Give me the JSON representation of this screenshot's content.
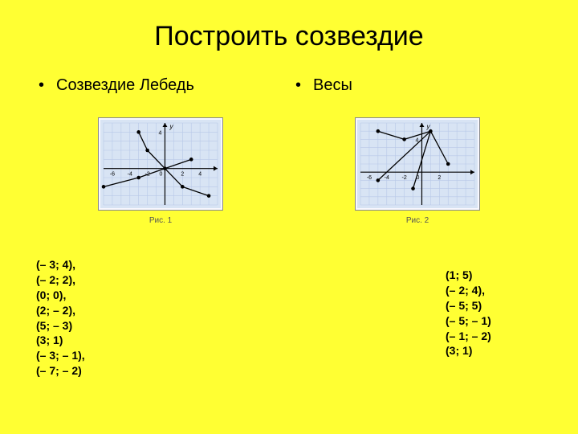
{
  "title": "Построить созвездие",
  "left": {
    "subtitle": "Созвездие Лебедь",
    "caption": "Рис. 1",
    "coords": [
      "(– 3; 4),",
      "(– 2; 2),",
      "(0; 0),",
      "(2; – 2),",
      "(5; – 3)",
      "(3; 1)",
      "(– 3; – 1),",
      "(– 7; – 2)"
    ],
    "chart": {
      "w": 150,
      "h": 110,
      "xmin": -7,
      "xmax": 6,
      "ymin": -4,
      "ymax": 5,
      "xticks_labeled": [
        -6,
        -4,
        -2,
        2,
        4
      ],
      "yticks_labeled": [
        4
      ],
      "grid_color": "#b8c8e8",
      "axis_color": "#000",
      "bg": "#d8e4f4",
      "point_color": "#000",
      "point_r": 2.3,
      "line_w": 1.3,
      "segments": [
        [
          [
            -3,
            4
          ],
          [
            -2,
            2
          ]
        ],
        [
          [
            -2,
            2
          ],
          [
            0,
            0
          ]
        ],
        [
          [
            0,
            0
          ],
          [
            2,
            -2
          ]
        ],
        [
          [
            2,
            -2
          ],
          [
            5,
            -3
          ]
        ],
        [
          [
            0,
            0
          ],
          [
            3,
            1
          ]
        ],
        [
          [
            0,
            0
          ],
          [
            -3,
            -1
          ]
        ],
        [
          [
            -3,
            -1
          ],
          [
            -7,
            -2
          ]
        ]
      ],
      "points": [
        [
          -3,
          4
        ],
        [
          -2,
          2
        ],
        [
          0,
          0
        ],
        [
          2,
          -2
        ],
        [
          5,
          -3
        ],
        [
          3,
          1
        ],
        [
          -3,
          -1
        ],
        [
          -7,
          -2
        ]
      ],
      "ylabel": "y"
    }
  },
  "right": {
    "subtitle": "Весы",
    "caption": "Рис. 2",
    "coords": [
      "(1; 5)",
      "(– 2; 4),",
      "(– 5; 5)",
      "(– 5; – 1)",
      "(– 1; – 2)",
      "(3; 1)"
    ],
    "chart": {
      "w": 150,
      "h": 110,
      "xmin": -7,
      "xmax": 6,
      "ymin": -4,
      "ymax": 6,
      "xticks_labeled": [
        -6,
        -4,
        -2,
        2
      ],
      "yticks_labeled": [
        4
      ],
      "grid_color": "#b8c8e8",
      "axis_color": "#000",
      "bg": "#d8e4f4",
      "point_color": "#000",
      "point_r": 2.3,
      "line_w": 1.3,
      "segments": [
        [
          [
            1,
            5
          ],
          [
            -2,
            4
          ]
        ],
        [
          [
            -2,
            4
          ],
          [
            -5,
            5
          ]
        ],
        [
          [
            1,
            5
          ],
          [
            -5,
            -1
          ]
        ],
        [
          [
            1,
            5
          ],
          [
            -1,
            -2
          ]
        ],
        [
          [
            1,
            5
          ],
          [
            3,
            1
          ]
        ]
      ],
      "points": [
        [
          1,
          5
        ],
        [
          -2,
          4
        ],
        [
          -5,
          5
        ],
        [
          -5,
          -1
        ],
        [
          -1,
          -2
        ],
        [
          3,
          1
        ]
      ],
      "ylabel": "y"
    }
  }
}
